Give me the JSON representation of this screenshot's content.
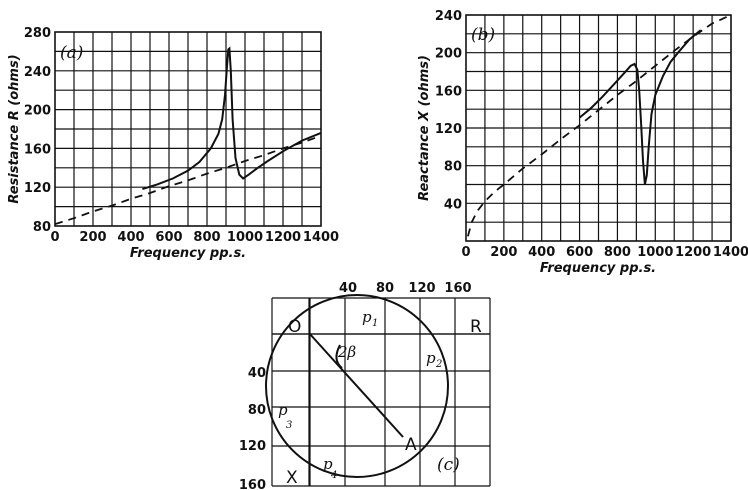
{
  "chart_data": [
    {
      "panel": "(a)",
      "type": "line",
      "xlabel": "Frequency pp.s.",
      "ylabel": "Resistance R (ohms)",
      "xlim": [
        0,
        1400
      ],
      "ylim": [
        80,
        280
      ],
      "xticks": [
        "0",
        "200",
        "400",
        "600",
        "800",
        "1000",
        "1200",
        "1400"
      ],
      "yticks": [
        "80",
        "120",
        "160",
        "200",
        "240",
        "280"
      ],
      "grid": true,
      "series": [
        {
          "style": "solid",
          "x": [
            460,
            540,
            620,
            700,
            760,
            820,
            860,
            880,
            895,
            905,
            912,
            918,
            925,
            935,
            950,
            970,
            990,
            1020,
            1060,
            1120,
            1200,
            1300,
            1400
          ],
          "y": [
            118,
            123,
            129,
            137,
            146,
            160,
            175,
            190,
            215,
            245,
            262,
            263,
            240,
            190,
            150,
            133,
            129,
            133,
            139,
            147,
            157,
            168,
            176
          ]
        },
        {
          "style": "dashed",
          "x": [
            0,
            100,
            200,
            300,
            400,
            500,
            600,
            700,
            800,
            900,
            1000,
            1100,
            1200,
            1300,
            1400
          ],
          "y": [
            82,
            88,
            95,
            101,
            108,
            114,
            121,
            127,
            134,
            140,
            147,
            153,
            160,
            166,
            173
          ]
        }
      ]
    },
    {
      "panel": "(b)",
      "type": "line",
      "xlabel": "Frequency pp.s.",
      "ylabel": "Reactance X (ohms)",
      "xlim": [
        0,
        1400
      ],
      "ylim": [
        0,
        240
      ],
      "xticks": [
        "0",
        "200",
        "400",
        "600",
        "800",
        "1000",
        "1200",
        "1400"
      ],
      "yticks": [
        "40",
        "80",
        "120",
        "160",
        "200",
        "240"
      ],
      "grid": true,
      "series": [
        {
          "style": "solid",
          "x": [
            600,
            660,
            720,
            780,
            830,
            870,
            890,
            905,
            915,
            925,
            935,
            945,
            955,
            965,
            980,
            1000,
            1040,
            1080,
            1120,
            1180,
            1240
          ],
          "y": [
            131,
            141,
            153,
            166,
            177,
            186,
            188,
            182,
            160,
            125,
            85,
            60,
            70,
            100,
            135,
            155,
            175,
            190,
            200,
            214,
            224
          ]
        },
        {
          "style": "dashed",
          "x": [
            10,
            30,
            60,
            100,
            150,
            200,
            300,
            400,
            500,
            600,
            700,
            800,
            900,
            1000,
            1100,
            1200,
            1300,
            1400
          ],
          "y": [
            5,
            20,
            32,
            42,
            52,
            60,
            77,
            92,
            108,
            123,
            139,
            155,
            170,
            186,
            202,
            217,
            231,
            240
          ]
        }
      ]
    },
    {
      "panel": "(c)",
      "type": "circle diagram",
      "top_ticks": [
        "40",
        "80",
        "120",
        "160"
      ],
      "left_ticks": [
        "40",
        "80",
        "120",
        "160"
      ],
      "labels": {
        "origin": "O",
        "r_axis": "R",
        "x_axis": "X",
        "diameter_end": "A",
        "angle": "2β"
      },
      "points": [
        "p1",
        "p2",
        "p3",
        "p4"
      ]
    }
  ]
}
